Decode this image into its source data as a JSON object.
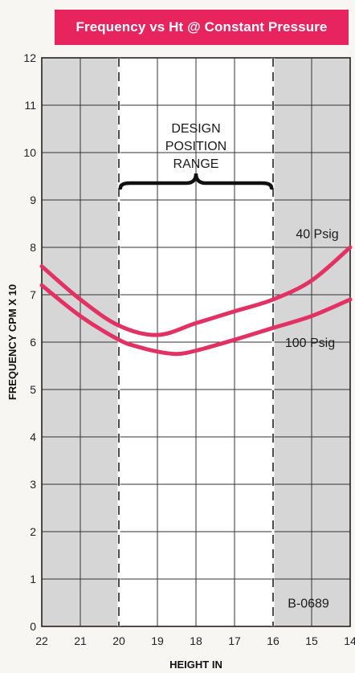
{
  "title": "Frequency vs Ht @ Constant Pressure",
  "colors": {
    "title_bg": "#e8245e",
    "curve": "#e23163",
    "shade": "#d6d6d6",
    "grid": "#333333"
  },
  "chart_data": {
    "type": "line",
    "xlabel": "HEIGHT IN",
    "ylabel": "FREQUENCY CPM X 10",
    "xlim": [
      22,
      14
    ],
    "ylim": [
      0,
      12
    ],
    "x_ticks": [
      "22",
      "21",
      "20",
      "19",
      "18",
      "17",
      "16",
      "15",
      "14"
    ],
    "y_ticks": [
      "0",
      "1",
      "2",
      "3",
      "4",
      "5",
      "6",
      "7",
      "8",
      "9",
      "10",
      "11",
      "12"
    ],
    "grid": true,
    "shaded_x_ranges": [
      [
        22,
        20
      ],
      [
        16,
        14
      ]
    ],
    "dashed_x_lines": [
      20,
      16
    ],
    "annotations": {
      "range_label": [
        "DESIGN",
        "POSITION",
        "RANGE"
      ],
      "range_x": [
        20,
        16
      ],
      "code": "B-0689"
    },
    "series": [
      {
        "name": "40 Psig",
        "x": [
          22,
          21,
          20,
          19,
          18,
          17,
          16,
          15,
          14
        ],
        "y": [
          7.6,
          6.9,
          6.35,
          6.15,
          6.4,
          6.65,
          6.9,
          7.3,
          8.0
        ]
      },
      {
        "name": "100 Psig",
        "x": [
          22,
          21,
          20,
          19.5,
          19,
          18.5,
          18,
          17,
          16,
          15,
          14
        ],
        "y": [
          7.2,
          6.55,
          6.05,
          5.9,
          5.8,
          5.75,
          5.82,
          6.05,
          6.3,
          6.55,
          6.9
        ]
      }
    ]
  }
}
